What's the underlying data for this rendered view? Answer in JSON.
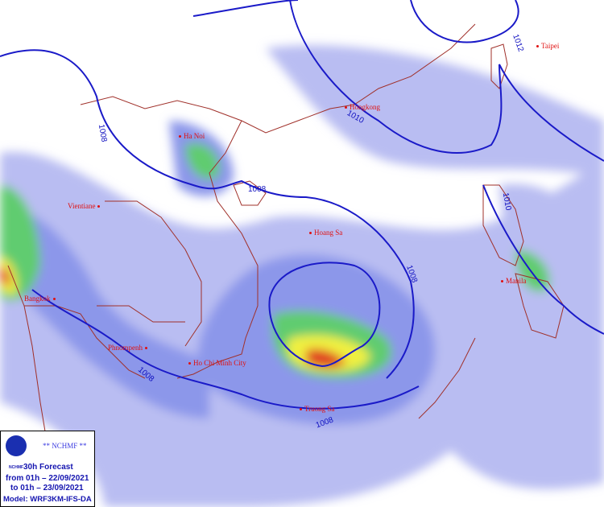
{
  "legend": {
    "organization": "** NCHMF **",
    "logo_text": "NCHMF",
    "forecast": "30h Forecast",
    "from": "from 01h – 22/09/2021",
    "to": "to 01h – 23/09/2021",
    "model": "Model: WRF3KM-IFS-DA"
  },
  "cities": [
    {
      "name": "Taipei"
    },
    {
      "name": "Hongkong"
    },
    {
      "name": "Ha Noi"
    },
    {
      "name": "Vientiane"
    },
    {
      "name": "Hoang Sa"
    },
    {
      "name": "Manila"
    },
    {
      "name": "Bangkok"
    },
    {
      "name": "Phnompenh"
    },
    {
      "name": "Ho Chi Minh City"
    },
    {
      "name": "Truong Sa"
    }
  ],
  "isobars": [
    "1012",
    "1010",
    "1008",
    "1008",
    "1010",
    "1008",
    "1008",
    "1008"
  ],
  "colors": {
    "isobar": "#1a1ac8",
    "border": "#a0302a",
    "rain_light": "#aab0f0",
    "rain_mod": "#7f8fe8",
    "rain_green": "#5ad06a",
    "rain_yellow": "#f0f040",
    "rain_red": "#e03020",
    "city": "#e01010"
  }
}
